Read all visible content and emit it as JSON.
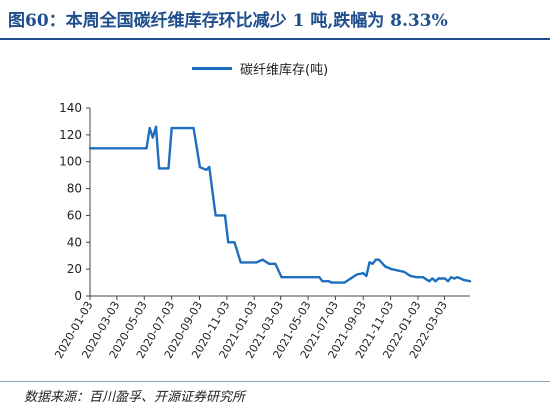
{
  "header": {
    "title": "图60：本周全国碳纤维库存环比减少 1 吨,跌幅为 8.33%"
  },
  "footer": {
    "source": "数据来源：百川盈孚、开源证券研究所"
  },
  "colors": {
    "title": "#1f4e8c",
    "line": "#1f6fbf"
  },
  "chart_data": {
    "type": "line",
    "title": "",
    "xlabel": "",
    "ylabel": "",
    "legend_position": "top-center",
    "grid": false,
    "ylim": [
      0,
      140
    ],
    "yticks": [
      0,
      20,
      40,
      60,
      80,
      100,
      120,
      140
    ],
    "xlim": [
      "2020-01-03",
      "2022-04-29"
    ],
    "xtick_labels": [
      "2020-01-03",
      "2020-03-03",
      "2020-05-03",
      "2020-07-03",
      "2020-09-03",
      "2020-11-03",
      "2021-01-03",
      "2021-03-03",
      "2021-05-03",
      "2021-07-03",
      "2021-09-03",
      "2021-11-03",
      "2022-01-03",
      "2022-03-03"
    ],
    "series": [
      {
        "name": "碳纤维库存(吨)",
        "color": "#1f6fbf",
        "points": [
          [
            "2020-01-03",
            110
          ],
          [
            "2020-05-08",
            110
          ],
          [
            "2020-05-15",
            125
          ],
          [
            "2020-05-22",
            118
          ],
          [
            "2020-05-29",
            126
          ],
          [
            "2020-06-05",
            95
          ],
          [
            "2020-06-26",
            95
          ],
          [
            "2020-07-03",
            125
          ],
          [
            "2020-08-21",
            125
          ],
          [
            "2020-09-04",
            96
          ],
          [
            "2020-09-18",
            94
          ],
          [
            "2020-09-25",
            96
          ],
          [
            "2020-10-09",
            60
          ],
          [
            "2020-10-30",
            60
          ],
          [
            "2020-11-06",
            40
          ],
          [
            "2020-11-20",
            40
          ],
          [
            "2020-12-04",
            25
          ],
          [
            "2021-01-08",
            25
          ],
          [
            "2021-01-22",
            27
          ],
          [
            "2021-02-05",
            24
          ],
          [
            "2021-02-19",
            24
          ],
          [
            "2021-03-05",
            14
          ],
          [
            "2021-05-28",
            14
          ],
          [
            "2021-06-04",
            11
          ],
          [
            "2021-06-18",
            11
          ],
          [
            "2021-06-25",
            10
          ],
          [
            "2021-07-09",
            10
          ],
          [
            "2021-07-23",
            10
          ],
          [
            "2021-08-06",
            13
          ],
          [
            "2021-08-20",
            16
          ],
          [
            "2021-09-03",
            17
          ],
          [
            "2021-09-10",
            15
          ],
          [
            "2021-09-17",
            25
          ],
          [
            "2021-09-24",
            24
          ],
          [
            "2021-10-01",
            27
          ],
          [
            "2021-10-08",
            27
          ],
          [
            "2021-10-22",
            22
          ],
          [
            "2021-11-05",
            20
          ],
          [
            "2021-11-19",
            19
          ],
          [
            "2021-12-03",
            18
          ],
          [
            "2021-12-17",
            15
          ],
          [
            "2021-12-31",
            14
          ],
          [
            "2022-01-14",
            14
          ],
          [
            "2022-01-28",
            11
          ],
          [
            "2022-02-04",
            13
          ],
          [
            "2022-02-11",
            11
          ],
          [
            "2022-02-18",
            13
          ],
          [
            "2022-03-04",
            13
          ],
          [
            "2022-03-11",
            11
          ],
          [
            "2022-03-18",
            14
          ],
          [
            "2022-03-25",
            13
          ],
          [
            "2022-04-01",
            14
          ],
          [
            "2022-04-15",
            12
          ],
          [
            "2022-04-29",
            11
          ]
        ]
      }
    ]
  }
}
